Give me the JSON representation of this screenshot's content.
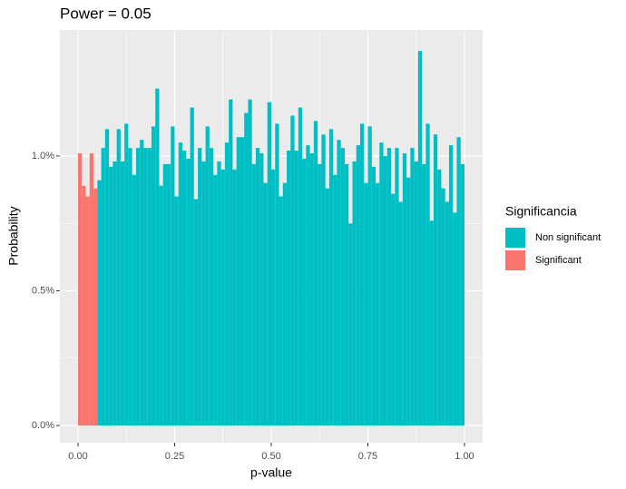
{
  "chart_data": {
    "type": "histogram",
    "title": "Power = 0.05",
    "x_label": "p-value",
    "y_label": "Probability",
    "legend_title": "Significancia",
    "legend": "right",
    "grid": true,
    "bins": [
      0,
      0.01,
      0.02,
      0.03,
      0.04,
      0.05,
      0.06,
      0.07,
      0.08,
      0.09,
      0.1,
      0.11,
      0.12,
      0.13,
      0.14,
      0.15,
      0.16,
      0.17,
      0.18,
      0.19,
      0.2,
      0.21,
      0.22,
      0.23,
      0.24,
      0.25,
      0.26,
      0.27,
      0.28,
      0.29,
      0.3,
      0.31,
      0.32,
      0.33,
      0.34,
      0.35,
      0.36,
      0.37,
      0.38,
      0.39,
      0.4,
      0.41,
      0.42,
      0.43,
      0.44,
      0.45,
      0.46,
      0.47,
      0.48,
      0.49,
      0.5,
      0.51,
      0.52,
      0.53,
      0.54,
      0.55,
      0.56,
      0.57,
      0.58,
      0.59,
      0.6,
      0.61,
      0.62,
      0.63,
      0.64,
      0.65,
      0.66,
      0.67,
      0.68,
      0.69,
      0.7,
      0.71,
      0.72,
      0.73,
      0.74,
      0.75,
      0.76,
      0.77,
      0.78,
      0.79,
      0.8,
      0.81,
      0.82,
      0.83,
      0.84,
      0.85,
      0.86,
      0.87,
      0.88,
      0.89,
      0.9,
      0.91,
      0.92,
      0.93,
      0.94,
      0.95,
      0.96,
      0.97,
      0.98,
      0.99,
      1
    ],
    "series": [
      {
        "name": "Non significant",
        "color": "#00BFC4",
        "values": [
          null,
          null,
          null,
          null,
          null,
          0.91,
          1.03,
          1.1,
          0.96,
          0.98,
          1.1,
          0.98,
          1.12,
          1.03,
          0.93,
          1.03,
          1.06,
          1.03,
          1.03,
          1.11,
          1.25,
          0.89,
          0.97,
          0.97,
          1.11,
          0.85,
          1.05,
          1.02,
          0.99,
          1.18,
          0.84,
          1.03,
          0.98,
          1.11,
          1.03,
          0.93,
          0.98,
          0.95,
          1.05,
          1.21,
          0.95,
          1.07,
          1.07,
          1.16,
          1.21,
          0.97,
          1.03,
          1.01,
          0.9,
          1.2,
          0.95,
          1.12,
          0.85,
          0.9,
          1.02,
          1.15,
          1.02,
          1.18,
          0.99,
          1.04,
          1.01,
          1.13,
          0.97,
          1.08,
          0.88,
          1.1,
          0.93,
          1.06,
          1.03,
          0.97,
          0.75,
          0.98,
          1.04,
          1.12,
          0.9,
          1.11,
          0.96,
          0.9,
          1.05,
          1.0,
          1.03,
          0.86,
          1.03,
          0.83,
          1.01,
          0.92,
          1.03,
          0.98,
          1.39,
          0.97,
          1.12,
          0.76,
          1.08,
          0.95,
          0.88,
          0.83,
          1.04,
          0.79,
          1.07,
          0.97
        ]
      },
      {
        "name": "Significant",
        "color": "#F8766D",
        "values": [
          1.01,
          0.89,
          0.85,
          1.01,
          0.88,
          null,
          null,
          null,
          null,
          null,
          null,
          null,
          null,
          null,
          null,
          null,
          null,
          null,
          null,
          null,
          null,
          null,
          null,
          null,
          null,
          null,
          null,
          null,
          null,
          null,
          null,
          null,
          null,
          null,
          null,
          null,
          null,
          null,
          null,
          null,
          null,
          null,
          null,
          null,
          null,
          null,
          null,
          null,
          null,
          null,
          null,
          null,
          null,
          null,
          null,
          null,
          null,
          null,
          null,
          null,
          null,
          null,
          null,
          null,
          null,
          null,
          null,
          null,
          null,
          null,
          null,
          null,
          null,
          null,
          null,
          null,
          null,
          null,
          null,
          null,
          null,
          null,
          null,
          null,
          null,
          null,
          null,
          null,
          null,
          null,
          null,
          null,
          null,
          null,
          null,
          null,
          null,
          null,
          null,
          null
        ]
      }
    ],
    "xlim": [
      -0.047,
      1.047
    ],
    "ylim": [
      -0.064,
      1.468
    ],
    "xticks": [
      {
        "value": 0,
        "label": "0.00"
      },
      {
        "value": 0.25,
        "label": "0.25"
      },
      {
        "value": 0.5,
        "label": "0.50"
      },
      {
        "value": 0.75,
        "label": "0.75"
      },
      {
        "value": 1,
        "label": "1.00"
      }
    ],
    "yticks": [
      {
        "value": 0,
        "label": "0.0%"
      },
      {
        "value": 0.5,
        "label": "0.5%"
      },
      {
        "value": 1,
        "label": "1.0%"
      }
    ]
  }
}
